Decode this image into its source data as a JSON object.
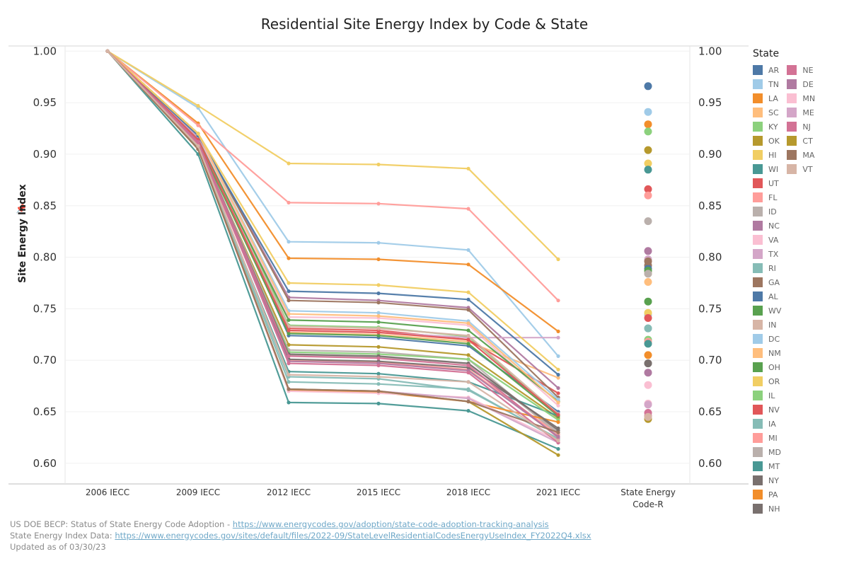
{
  "chart_data": {
    "type": "line",
    "title": "Residential Site Energy Index by Code & State",
    "ylabel": "Site Energy Index",
    "xlabel": "",
    "categories": [
      "2006 IECC",
      "2009 IECC",
      "2012 IECC",
      "2015 IECC",
      "2018 IECC",
      "2021 IECC"
    ],
    "extra_category": [
      "State Energy",
      "Code-R"
    ],
    "ylim": [
      0.58,
      1.005
    ],
    "yticks": [
      "1.00",
      "0.95",
      "0.90",
      "0.85",
      "0.80",
      "0.75",
      "0.70",
      "0.65",
      "0.60"
    ],
    "legend_title": "State",
    "series": [
      {
        "name": "AR",
        "color": "#4e79a7",
        "values": [
          1.0,
          0.92,
          0.724,
          0.722,
          0.714,
          0.65
        ],
        "state_code": 0.966
      },
      {
        "name": "TN",
        "color": "#a0cbe8",
        "values": [
          1.0,
          0.945,
          0.815,
          0.814,
          0.807,
          0.704
        ],
        "state_code": 0.941
      },
      {
        "name": "LA",
        "color": "#f28e2b",
        "values": [
          1.0,
          0.93,
          0.799,
          0.798,
          0.793,
          0.728
        ],
        "state_code": 0.929
      },
      {
        "name": "SC",
        "color": "#ffbe7d",
        "values": [
          1.0,
          0.915,
          0.727,
          0.725,
          0.718,
          0.683
        ],
        "state_code": 0.776
      },
      {
        "name": "KY",
        "color": "#8cd17d",
        "values": [
          1.0,
          0.92,
          0.734,
          0.732,
          0.723,
          0.647
        ],
        "state_code": 0.922
      },
      {
        "name": "OK",
        "color": "#b6992d",
        "values": [
          1.0,
          0.91,
          0.715,
          0.713,
          0.705,
          0.644
        ],
        "state_code": 0.904
      },
      {
        "name": "HI",
        "color": "#f1ce63",
        "values": [
          1.0,
          0.947,
          0.891,
          0.89,
          0.886,
          0.798
        ],
        "state_code": 0.891
      },
      {
        "name": "WI",
        "color": "#499894",
        "values": [
          1.0,
          0.905,
          0.689,
          0.687,
          0.679,
          0.646
        ],
        "state_code": 0.885
      },
      {
        "name": "UT",
        "color": "#e15759",
        "values": [
          1.0,
          0.915,
          0.731,
          0.729,
          0.72,
          0.668
        ],
        "state_code": 0.866
      },
      {
        "name": "FL",
        "color": "#ff9d9a",
        "values": [
          1.0,
          0.928,
          0.853,
          0.852,
          0.847,
          0.758
        ],
        "state_code": 0.86
      },
      {
        "name": "ID",
        "color": "#bab0ac",
        "values": [
          1.0,
          0.912,
          0.71,
          0.708,
          0.701,
          0.628
        ],
        "state_code": 0.835
      },
      {
        "name": "NC",
        "color": "#b07aa1",
        "values": [
          1.0,
          0.92,
          0.761,
          0.758,
          0.751,
          0.673
        ],
        "state_code": 0.806
      },
      {
        "name": "VA",
        "color": "#fabfd2",
        "values": [
          1.0,
          0.918,
          0.742,
          0.741,
          0.734,
          0.656
        ],
        "state_code": 0.676
      },
      {
        "name": "TX",
        "color": "#d4a6c8",
        "values": [
          1.0,
          0.916,
          0.729,
          0.727,
          0.722,
          0.722
        ],
        "state_code": 0.798
      },
      {
        "name": "RI",
        "color": "#86bcb6",
        "values": [
          1.0,
          0.906,
          0.684,
          0.682,
          0.671,
          0.624
        ],
        "state_code": 0.731
      },
      {
        "name": "GA",
        "color": "#9d7660",
        "values": [
          1.0,
          0.92,
          0.758,
          0.756,
          0.749,
          0.664
        ],
        "state_code": 0.792
      },
      {
        "name": "AL",
        "color": "#4e79a7",
        "values": [
          1.0,
          0.918,
          0.767,
          0.765,
          0.759,
          0.686
        ],
        "state_code": 0.789
      },
      {
        "name": "WV",
        "color": "#59a14f",
        "values": [
          1.0,
          0.914,
          0.739,
          0.737,
          0.729,
          0.66
        ],
        "state_code": 0.757
      },
      {
        "name": "IN",
        "color": "#d7b5a6",
        "values": [
          1.0,
          0.913,
          0.733,
          0.731,
          0.724,
          0.648
        ],
        "state_code": 0.786
      },
      {
        "name": "DC",
        "color": "#a0cbe8",
        "values": [
          1.0,
          0.92,
          0.748,
          0.746,
          0.738,
          0.662
        ],
        "state_code": 0.744
      },
      {
        "name": "NM",
        "color": "#ffbe7d",
        "values": [
          1.0,
          0.92,
          0.745,
          0.743,
          0.736,
          0.659
        ],
        "state_code": 0.784
      },
      {
        "name": "OH",
        "color": "#59a14f",
        "values": [
          1.0,
          0.912,
          0.726,
          0.724,
          0.716,
          0.646
        ],
        "state_code": 0.787
      },
      {
        "name": "OR",
        "color": "#f1ce63",
        "values": [
          1.0,
          0.92,
          0.775,
          0.773,
          0.766,
          0.691
        ],
        "state_code": 0.746
      },
      {
        "name": "IL",
        "color": "#8cd17d",
        "values": [
          1.0,
          0.91,
          0.708,
          0.706,
          0.701,
          0.642
        ],
        "state_code": 0.72
      },
      {
        "name": "NV",
        "color": "#e15759",
        "values": [
          1.0,
          0.914,
          0.729,
          0.727,
          0.72,
          0.647
        ],
        "state_code": 0.741
      },
      {
        "name": "IA",
        "color": "#86bcb6",
        "values": [
          1.0,
          0.905,
          0.679,
          0.677,
          0.672,
          0.623
        ],
        "state_code": 0.731
      },
      {
        "name": "MI",
        "color": "#ff9d9a",
        "values": [
          1.0,
          0.908,
          0.7,
          0.698,
          0.691,
          0.628
        ],
        "state_code": 0.718
      },
      {
        "name": "MD",
        "color": "#bab0ac",
        "values": [
          1.0,
          0.91,
          0.705,
          0.703,
          0.697,
          0.63
        ],
        "state_code": 0.784
      },
      {
        "name": "MT",
        "color": "#499894",
        "values": [
          1.0,
          0.9,
          0.659,
          0.658,
          0.651,
          0.614
        ],
        "state_code": 0.716
      },
      {
        "name": "NY",
        "color": "#79706e",
        "values": [
          1.0,
          0.912,
          0.706,
          0.704,
          0.697,
          0.632
        ],
        "state_code": 0.697
      },
      {
        "name": "PA",
        "color": "#f28e2b",
        "values": [
          1.0,
          0.905,
          0.671,
          0.669,
          0.66,
          0.64
        ],
        "state_code": 0.705
      },
      {
        "name": "NH",
        "color": "#79706e",
        "values": [
          1.0,
          0.91,
          0.701,
          0.699,
          0.693,
          0.634
        ],
        "state_code": 0.697
      },
      {
        "name": "NE",
        "color": "#d37295",
        "values": [
          1.0,
          0.912,
          0.704,
          0.702,
          0.695,
          0.625
        ],
        "state_code": 0.649
      },
      {
        "name": "DE",
        "color": "#b07aa1",
        "values": [
          1.0,
          0.91,
          0.699,
          0.697,
          0.69,
          0.626
        ],
        "state_code": 0.688
      },
      {
        "name": "MN",
        "color": "#fabfd2",
        "values": [
          1.0,
          0.905,
          0.67,
          0.668,
          0.664,
          0.622
        ],
        "state_code": 0.658
      },
      {
        "name": "ME",
        "color": "#d4a6c8",
        "values": [
          1.0,
          0.905,
          0.672,
          0.67,
          0.663,
          0.62
        ],
        "state_code": 0.657
      },
      {
        "name": "NJ",
        "color": "#d37295",
        "values": [
          1.0,
          0.91,
          0.697,
          0.695,
          0.688,
          0.62
        ],
        "state_code": 0.646
      },
      {
        "name": "CT",
        "color": "#b6992d",
        "values": [
          1.0,
          0.905,
          0.672,
          0.67,
          0.66,
          0.608
        ],
        "state_code": 0.643
      },
      {
        "name": "MA",
        "color": "#9d7660",
        "values": [
          1.0,
          0.905,
          0.672,
          0.67,
          0.66,
          0.63
        ],
        "state_code": 0.796
      },
      {
        "name": "VT",
        "color": "#d7b5a6",
        "values": [
          1.0,
          0.908,
          0.686,
          0.684,
          0.679,
          0.622
        ],
        "state_code": 0.645
      }
    ]
  },
  "footer": {
    "line1_text": "US DOE BECP: Status of State Energy Code Adoption - ",
    "line1_link": "https://www.energycodes.gov/adoption/state-code-adoption-tracking-analysis",
    "line2_text": "State Energy Index Data: ",
    "line2_link": "https://www.energycodes.gov/sites/default/files/2022-09/StateLevelResidentialCodesEnergyUseIndex_FY2022Q4.xlsx",
    "line3_text": "Updated as of 03/30/23"
  },
  "icons": {
    "pin": "pin-icon"
  }
}
